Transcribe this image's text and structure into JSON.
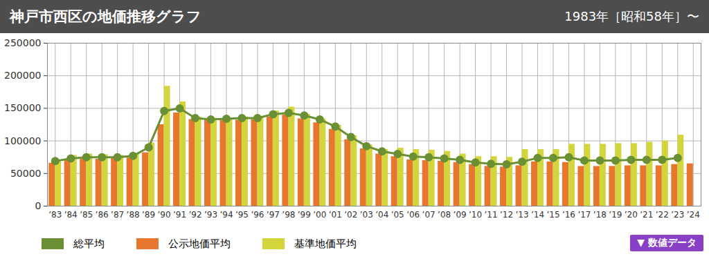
{
  "chart_data": {
    "type": "bar",
    "title": "神戸市西区の地価推移グラフ",
    "subtitle": "1983年［昭和58年］〜",
    "annotations": [
      "▼ 数値データ"
    ],
    "categories": [
      "’83",
      "’84",
      "’85",
      "’86",
      "’87",
      "’88",
      "’89",
      "’90",
      "’91",
      "’92",
      "’93",
      "’94",
      "’95",
      "’96",
      "’97",
      "’98",
      "’99",
      "’00",
      "’01",
      "’02",
      "’03",
      "’04",
      "’05",
      "’06",
      "’07",
      "’08",
      "’09",
      "’10",
      "’11",
      "’12",
      "’13",
      "’14",
      "’15",
      "’16",
      "’17",
      "’18",
      "’19",
      "’20",
      "’21",
      "’22",
      "’23",
      "’24"
    ],
    "series": [
      {
        "name": "総平均",
        "type": "line",
        "marker": "circle",
        "color": "#6a8f35",
        "values": [
          69000,
          73000,
          75000,
          75000,
          75000,
          77000,
          90000,
          146000,
          150000,
          135000,
          133000,
          134000,
          135000,
          135000,
          141000,
          143000,
          139000,
          133000,
          122000,
          106000,
          92000,
          84000,
          80000,
          76000,
          75000,
          73000,
          71000,
          67000,
          65000,
          64000,
          68000,
          74000,
          74000,
          75000,
          70000,
          70000,
          70000,
          71000,
          71000,
          71000,
          74000,
          null
        ]
      },
      {
        "name": "公示地価平均",
        "type": "bar",
        "color": "#e8772e",
        "values": [
          66000,
          70000,
          72000,
          72000,
          73000,
          74000,
          82000,
          125000,
          143000,
          133000,
          132000,
          132000,
          132000,
          133000,
          137000,
          140000,
          134000,
          128000,
          118000,
          102000,
          88000,
          80000,
          76000,
          71000,
          70000,
          69000,
          67000,
          64000,
          61000,
          60000,
          62000,
          68000,
          68000,
          67000,
          61000,
          61000,
          61000,
          62000,
          62000,
          62000,
          64000,
          65000
        ]
      },
      {
        "name": "基準地価平均",
        "type": "bar",
        "color": "#d3d53d",
        "values": [
          70000,
          78000,
          80000,
          79000,
          78000,
          80000,
          97000,
          184000,
          160000,
          137000,
          135000,
          135000,
          137000,
          137000,
          146000,
          152000,
          141000,
          134000,
          124000,
          108000,
          94000,
          87000,
          89000,
          87000,
          86000,
          84000,
          80000,
          76000,
          76000,
          75000,
          87000,
          87000,
          87000,
          95000,
          95000,
          95000,
          96000,
          96000,
          98000,
          100000,
          109000,
          null
        ]
      }
    ],
    "ylim": [
      0,
      250000
    ],
    "yticks": [
      0,
      50000,
      100000,
      150000,
      200000,
      250000
    ],
    "grid": true,
    "legend": "bottom"
  }
}
